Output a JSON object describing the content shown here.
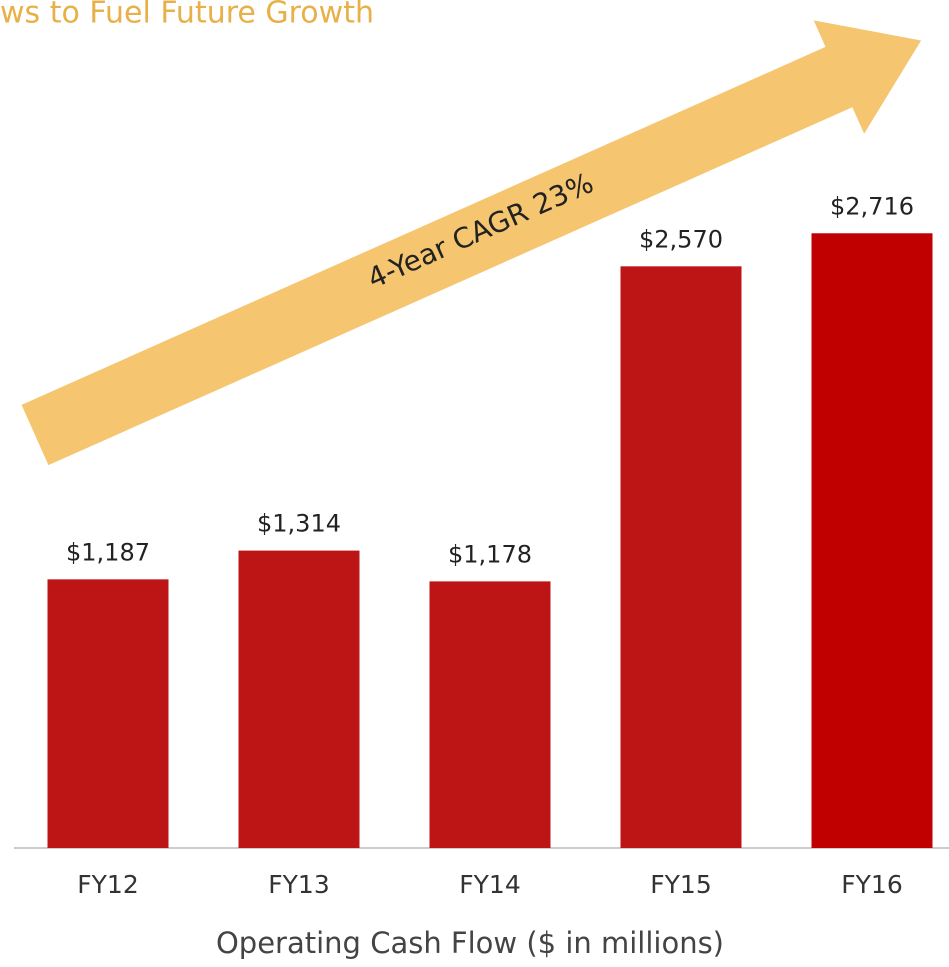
{
  "chart_data": {
    "type": "bar",
    "title": "ws to Fuel Future Growth",
    "annotation": "4-Year CAGR 23%",
    "x_label": "Operating Cash Flow ($ in millions)",
    "categories": [
      "FY12",
      "FY13",
      "FY14",
      "FY15",
      "FY16"
    ],
    "values": [
      1187,
      1314,
      1178,
      2570,
      2716
    ],
    "value_labels": [
      "$1,187",
      "$1,314",
      "$1,178",
      "$2,570",
      "$2,716"
    ],
    "colors": [
      "#bd1516",
      "#bd1516",
      "#bd1516",
      "#bd1516",
      "#c00000"
    ],
    "ylim": [
      0,
      3000
    ]
  }
}
